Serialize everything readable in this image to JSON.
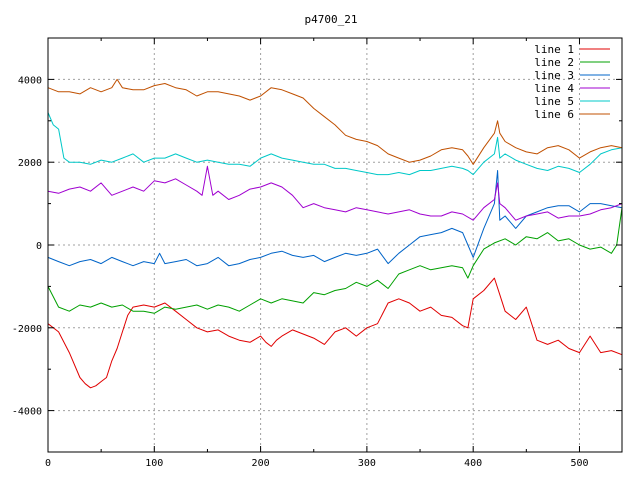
{
  "chart_data": {
    "type": "line",
    "title": "p4700_21",
    "xlabel": "",
    "ylabel": "",
    "xlim": [
      0,
      540
    ],
    "ylim": [
      -5000,
      5000
    ],
    "xticks": [
      0,
      100,
      200,
      300,
      400,
      500
    ],
    "yticks": [
      -4000,
      -2000,
      0,
      2000,
      4000
    ],
    "grid": true,
    "legend_position": "top-right",
    "series": [
      {
        "name": "line 1",
        "color": "#e00000",
        "x": [
          0,
          10,
          20,
          30,
          35,
          40,
          45,
          50,
          55,
          60,
          65,
          70,
          75,
          80,
          90,
          100,
          110,
          120,
          130,
          140,
          150,
          160,
          170,
          180,
          190,
          200,
          205,
          210,
          215,
          220,
          230,
          240,
          250,
          260,
          270,
          280,
          290,
          300,
          310,
          320,
          330,
          340,
          350,
          360,
          370,
          380,
          390,
          395,
          400,
          410,
          420,
          425,
          430,
          440,
          450,
          460,
          470,
          480,
          490,
          500,
          505,
          510,
          520,
          530,
          540
        ],
        "y": [
          -1900,
          -2100,
          -2600,
          -3200,
          -3350,
          -3450,
          -3400,
          -3300,
          -3200,
          -2800,
          -2500,
          -2100,
          -1700,
          -1500,
          -1450,
          -1500,
          -1400,
          -1600,
          -1800,
          -2000,
          -2100,
          -2050,
          -2200,
          -2300,
          -2350,
          -2200,
          -2350,
          -2450,
          -2300,
          -2200,
          -2050,
          -2150,
          -2250,
          -2400,
          -2100,
          -2000,
          -2200,
          -2000,
          -1900,
          -1400,
          -1300,
          -1400,
          -1600,
          -1500,
          -1700,
          -1750,
          -1950,
          -2000,
          -1300,
          -1100,
          -800,
          -1200,
          -1600,
          -1800,
          -1500,
          -2300,
          -2400,
          -2300,
          -2500,
          -2600,
          -2400,
          -2200,
          -2600,
          -2550,
          -2650
        ]
      },
      {
        "name": "line 2",
        "color": "#00a000",
        "x": [
          0,
          10,
          20,
          30,
          40,
          50,
          60,
          70,
          80,
          90,
          100,
          110,
          120,
          130,
          140,
          150,
          160,
          170,
          180,
          190,
          200,
          210,
          220,
          230,
          240,
          250,
          260,
          270,
          280,
          290,
          300,
          310,
          320,
          330,
          340,
          350,
          360,
          370,
          380,
          390,
          395,
          400,
          410,
          420,
          430,
          440,
          450,
          460,
          470,
          480,
          490,
          500,
          510,
          520,
          530,
          535,
          540
        ],
        "y": [
          -1000,
          -1500,
          -1600,
          -1450,
          -1500,
          -1400,
          -1500,
          -1450,
          -1600,
          -1600,
          -1650,
          -1500,
          -1550,
          -1500,
          -1450,
          -1550,
          -1450,
          -1500,
          -1600,
          -1450,
          -1300,
          -1400,
          -1300,
          -1350,
          -1400,
          -1150,
          -1200,
          -1100,
          -1050,
          -900,
          -1000,
          -850,
          -1050,
          -700,
          -600,
          -500,
          -600,
          -550,
          -500,
          -550,
          -800,
          -500,
          -100,
          50,
          150,
          0,
          200,
          150,
          300,
          100,
          150,
          0,
          -100,
          -50,
          -200,
          0,
          900
        ]
      },
      {
        "name": "line 3",
        "color": "#0064c8",
        "x": [
          0,
          10,
          20,
          30,
          40,
          50,
          60,
          70,
          80,
          90,
          100,
          105,
          110,
          120,
          130,
          140,
          150,
          160,
          170,
          180,
          190,
          200,
          210,
          220,
          230,
          240,
          250,
          260,
          270,
          280,
          290,
          300,
          310,
          320,
          330,
          340,
          350,
          360,
          370,
          380,
          390,
          395,
          400,
          410,
          420,
          423,
          425,
          430,
          440,
          450,
          460,
          470,
          480,
          490,
          500,
          510,
          520,
          530,
          540
        ],
        "y": [
          -300,
          -400,
          -500,
          -400,
          -350,
          -450,
          -300,
          -400,
          -500,
          -400,
          -450,
          -200,
          -450,
          -400,
          -350,
          -500,
          -450,
          -300,
          -500,
          -450,
          -350,
          -300,
          -200,
          -150,
          -250,
          -300,
          -250,
          -400,
          -300,
          -200,
          -250,
          -200,
          -100,
          -450,
          -200,
          0,
          200,
          250,
          300,
          400,
          300,
          0,
          -300,
          400,
          1000,
          1800,
          600,
          700,
          400,
          700,
          800,
          900,
          950,
          950,
          800,
          1000,
          1000,
          950,
          900
        ]
      },
      {
        "name": "line 4",
        "color": "#a000d0",
        "x": [
          0,
          10,
          20,
          30,
          40,
          50,
          60,
          70,
          80,
          90,
          100,
          110,
          120,
          130,
          140,
          145,
          150,
          155,
          160,
          170,
          180,
          190,
          200,
          210,
          220,
          230,
          240,
          250,
          260,
          270,
          280,
          290,
          300,
          310,
          320,
          330,
          340,
          350,
          360,
          370,
          380,
          390,
          400,
          410,
          420,
          423,
          425,
          430,
          440,
          450,
          460,
          470,
          480,
          490,
          500,
          510,
          520,
          530,
          540
        ],
        "y": [
          1300,
          1250,
          1350,
          1400,
          1300,
          1500,
          1200,
          1300,
          1400,
          1300,
          1550,
          1500,
          1600,
          1450,
          1300,
          1200,
          1900,
          1200,
          1300,
          1100,
          1200,
          1350,
          1400,
          1500,
          1400,
          1200,
          900,
          1000,
          900,
          850,
          800,
          900,
          850,
          800,
          750,
          800,
          850,
          750,
          700,
          700,
          800,
          750,
          600,
          900,
          1100,
          1500,
          1000,
          900,
          600,
          700,
          750,
          800,
          650,
          700,
          700,
          750,
          850,
          900,
          1000
        ]
      },
      {
        "name": "line 5",
        "color": "#00c8c8",
        "x": [
          0,
          5,
          10,
          15,
          20,
          30,
          40,
          50,
          60,
          70,
          80,
          90,
          100,
          110,
          120,
          130,
          140,
          150,
          160,
          170,
          180,
          190,
          200,
          210,
          220,
          230,
          240,
          250,
          260,
          270,
          280,
          290,
          300,
          310,
          320,
          330,
          340,
          350,
          360,
          370,
          380,
          390,
          395,
          400,
          410,
          420,
          423,
          425,
          430,
          440,
          450,
          460,
          470,
          480,
          490,
          500,
          510,
          520,
          530,
          540
        ],
        "y": [
          3200,
          2900,
          2800,
          2100,
          2000,
          2000,
          1950,
          2050,
          2000,
          2100,
          2200,
          2000,
          2100,
          2100,
          2200,
          2100,
          2000,
          2050,
          2000,
          1950,
          1950,
          1900,
          2100,
          2200,
          2100,
          2050,
          2000,
          1950,
          1950,
          1850,
          1850,
          1800,
          1750,
          1700,
          1700,
          1750,
          1700,
          1800,
          1800,
          1850,
          1900,
          1850,
          1800,
          1700,
          2000,
          2200,
          2600,
          2100,
          2200,
          2050,
          1950,
          1850,
          1800,
          1900,
          1850,
          1750,
          1950,
          2200,
          2300,
          2350
        ]
      },
      {
        "name": "line 6",
        "color": "#c05000",
        "x": [
          0,
          10,
          20,
          30,
          40,
          50,
          60,
          65,
          70,
          80,
          90,
          100,
          110,
          120,
          130,
          140,
          150,
          160,
          170,
          180,
          190,
          200,
          210,
          220,
          230,
          240,
          250,
          260,
          270,
          280,
          290,
          300,
          310,
          320,
          330,
          340,
          350,
          360,
          370,
          380,
          390,
          395,
          400,
          410,
          420,
          423,
          425,
          430,
          440,
          450,
          460,
          470,
          480,
          490,
          500,
          510,
          520,
          530,
          540
        ],
        "y": [
          3800,
          3700,
          3700,
          3650,
          3800,
          3700,
          3800,
          4000,
          3800,
          3750,
          3750,
          3850,
          3900,
          3800,
          3750,
          3600,
          3700,
          3700,
          3650,
          3600,
          3500,
          3600,
          3800,
          3750,
          3650,
          3550,
          3300,
          3100,
          2900,
          2650,
          2550,
          2500,
          2400,
          2200,
          2100,
          2000,
          2050,
          2150,
          2300,
          2350,
          2300,
          2150,
          1950,
          2350,
          2700,
          3000,
          2700,
          2500,
          2350,
          2250,
          2200,
          2350,
          2400,
          2300,
          2100,
          2250,
          2350,
          2400,
          2350
        ]
      }
    ]
  }
}
